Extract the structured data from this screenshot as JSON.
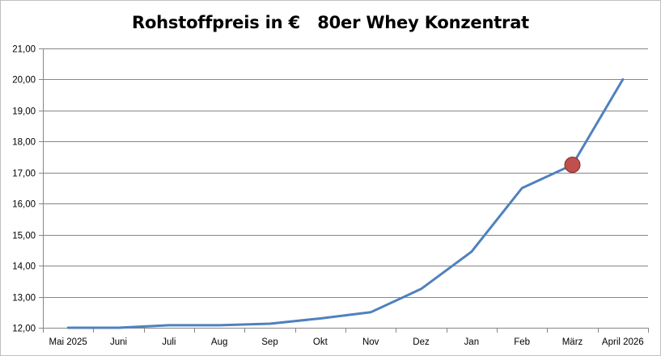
{
  "chart_data": {
    "type": "line",
    "title": "Rohstoffpreis in €   80er Whey Konzentrat",
    "xlabel": "",
    "ylabel": "",
    "categories": [
      "Mai 2025",
      "Juni",
      "Juli",
      "Aug",
      "Sep",
      "Okt",
      "Nov",
      "Dez",
      "Jan",
      "Feb",
      "März",
      "April 2026"
    ],
    "series": [
      {
        "values": [
          12.0,
          12.0,
          12.08,
          12.08,
          12.13,
          12.3,
          12.5,
          13.25,
          14.45,
          16.5,
          17.25,
          20.0
        ],
        "color": "#4f81bd"
      }
    ],
    "highlight": {
      "category": "März",
      "value": 17.25,
      "color": "#c0504d"
    },
    "ylim": [
      12,
      21
    ],
    "yticks": [
      "12,00",
      "13,00",
      "14,00",
      "15,00",
      "16,00",
      "17,00",
      "18,00",
      "19,00",
      "20,00",
      "21,00"
    ],
    "grid": true,
    "legend": "none"
  }
}
